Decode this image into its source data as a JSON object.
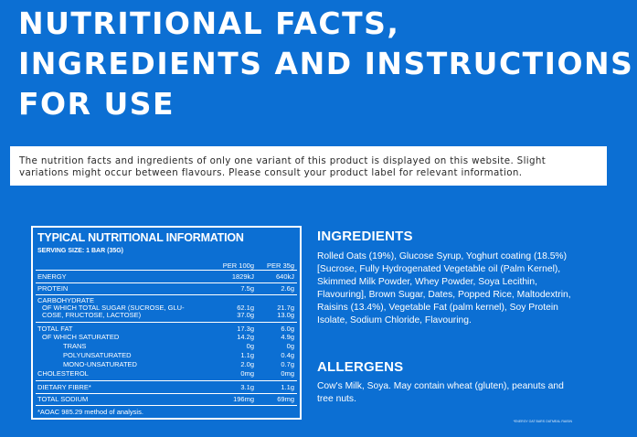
{
  "page": {
    "title_lines": [
      "NUTRITIONAL FACTS,",
      "INGREDIENTS AND INSTRUCTIONS",
      "FOR USE"
    ],
    "notice": "The nutrition facts and ingredients of only one variant of this product is displayed on this website. Slight variations might occur between flavours. Please consult your product label for relevant information."
  },
  "nutrition": {
    "title": "TYPICAL NUTRITIONAL INFORMATION",
    "serving_size": "SERVING SIZE: 1 BAR (35G)",
    "col1": "PER 100g",
    "col2": "PER 35g",
    "rows": [
      {
        "label": "ENERGY",
        "v1": "1829kJ",
        "v2": "640kJ"
      },
      {
        "label": "PROTEIN",
        "v1": "7.5g",
        "v2": "2.6g"
      },
      {
        "label": "CARBOHYDRATE",
        "v1": "",
        "v2": ""
      },
      {
        "label": "OF WHICH TOTAL SUGAR (SUCROSE, GLU-",
        "v1": "62.1g",
        "v2": "21.7g"
      },
      {
        "label": "COSE, FRUCTOSE, LACTOSE)",
        "v1": "37.0g",
        "v2": "13.0g"
      },
      {
        "label": "TOTAL FAT",
        "v1": "17.3g",
        "v2": "6.0g"
      },
      {
        "label": "OF WHICH SATURATED",
        "v1": "14.2g",
        "v2": "4.9g"
      },
      {
        "label": "TRANS",
        "v1": "0g",
        "v2": "0g"
      },
      {
        "label": "POLYUNSATURATED",
        "v1": "1.1g",
        "v2": "0.4g"
      },
      {
        "label": "MONO-UNSATURATED",
        "v1": "2.0g",
        "v2": "0.7g"
      },
      {
        "label": "CHOLESTEROL",
        "v1": "0mg",
        "v2": "0mg"
      },
      {
        "label": "DIETARY FIBRE*",
        "v1": "3.1g",
        "v2": "1.1g"
      },
      {
        "label": "TOTAL SODIUM",
        "v1": "196mg",
        "v2": "69mg"
      }
    ],
    "footnote": "*AOAC 985.29 method of analysis."
  },
  "ingredients": {
    "heading": "INGREDIENTS",
    "text": "Rolled Oats (19%), Glucose Syrup, Yoghurt coating (18.5%) [Sucrose, Fully Hydrogenated Vegetable oil (Palm Kernel), Skimmed Milk Powder, Whey Powder, Soya Lecithin, Flavouring], Brown Sugar, Dates, Popped Rice, Maltodextrin, Raisins (13.4%), Vegetable Fat (palm kernel), Soy Protein Isolate, Sodium Chloride, Flavouring."
  },
  "allergens": {
    "heading": "ALLERGENS",
    "text": "Cow's Milk, Soya. May contain wheat (gluten), peanuts and tree nuts."
  },
  "fine_print": "*ENERGY OAT BARS OATMEAL RAISIN",
  "colors": {
    "background": "#0c6fd3",
    "text": "#ffffff",
    "notice_bg": "#ffffff",
    "notice_text": "#2a2a2a"
  }
}
